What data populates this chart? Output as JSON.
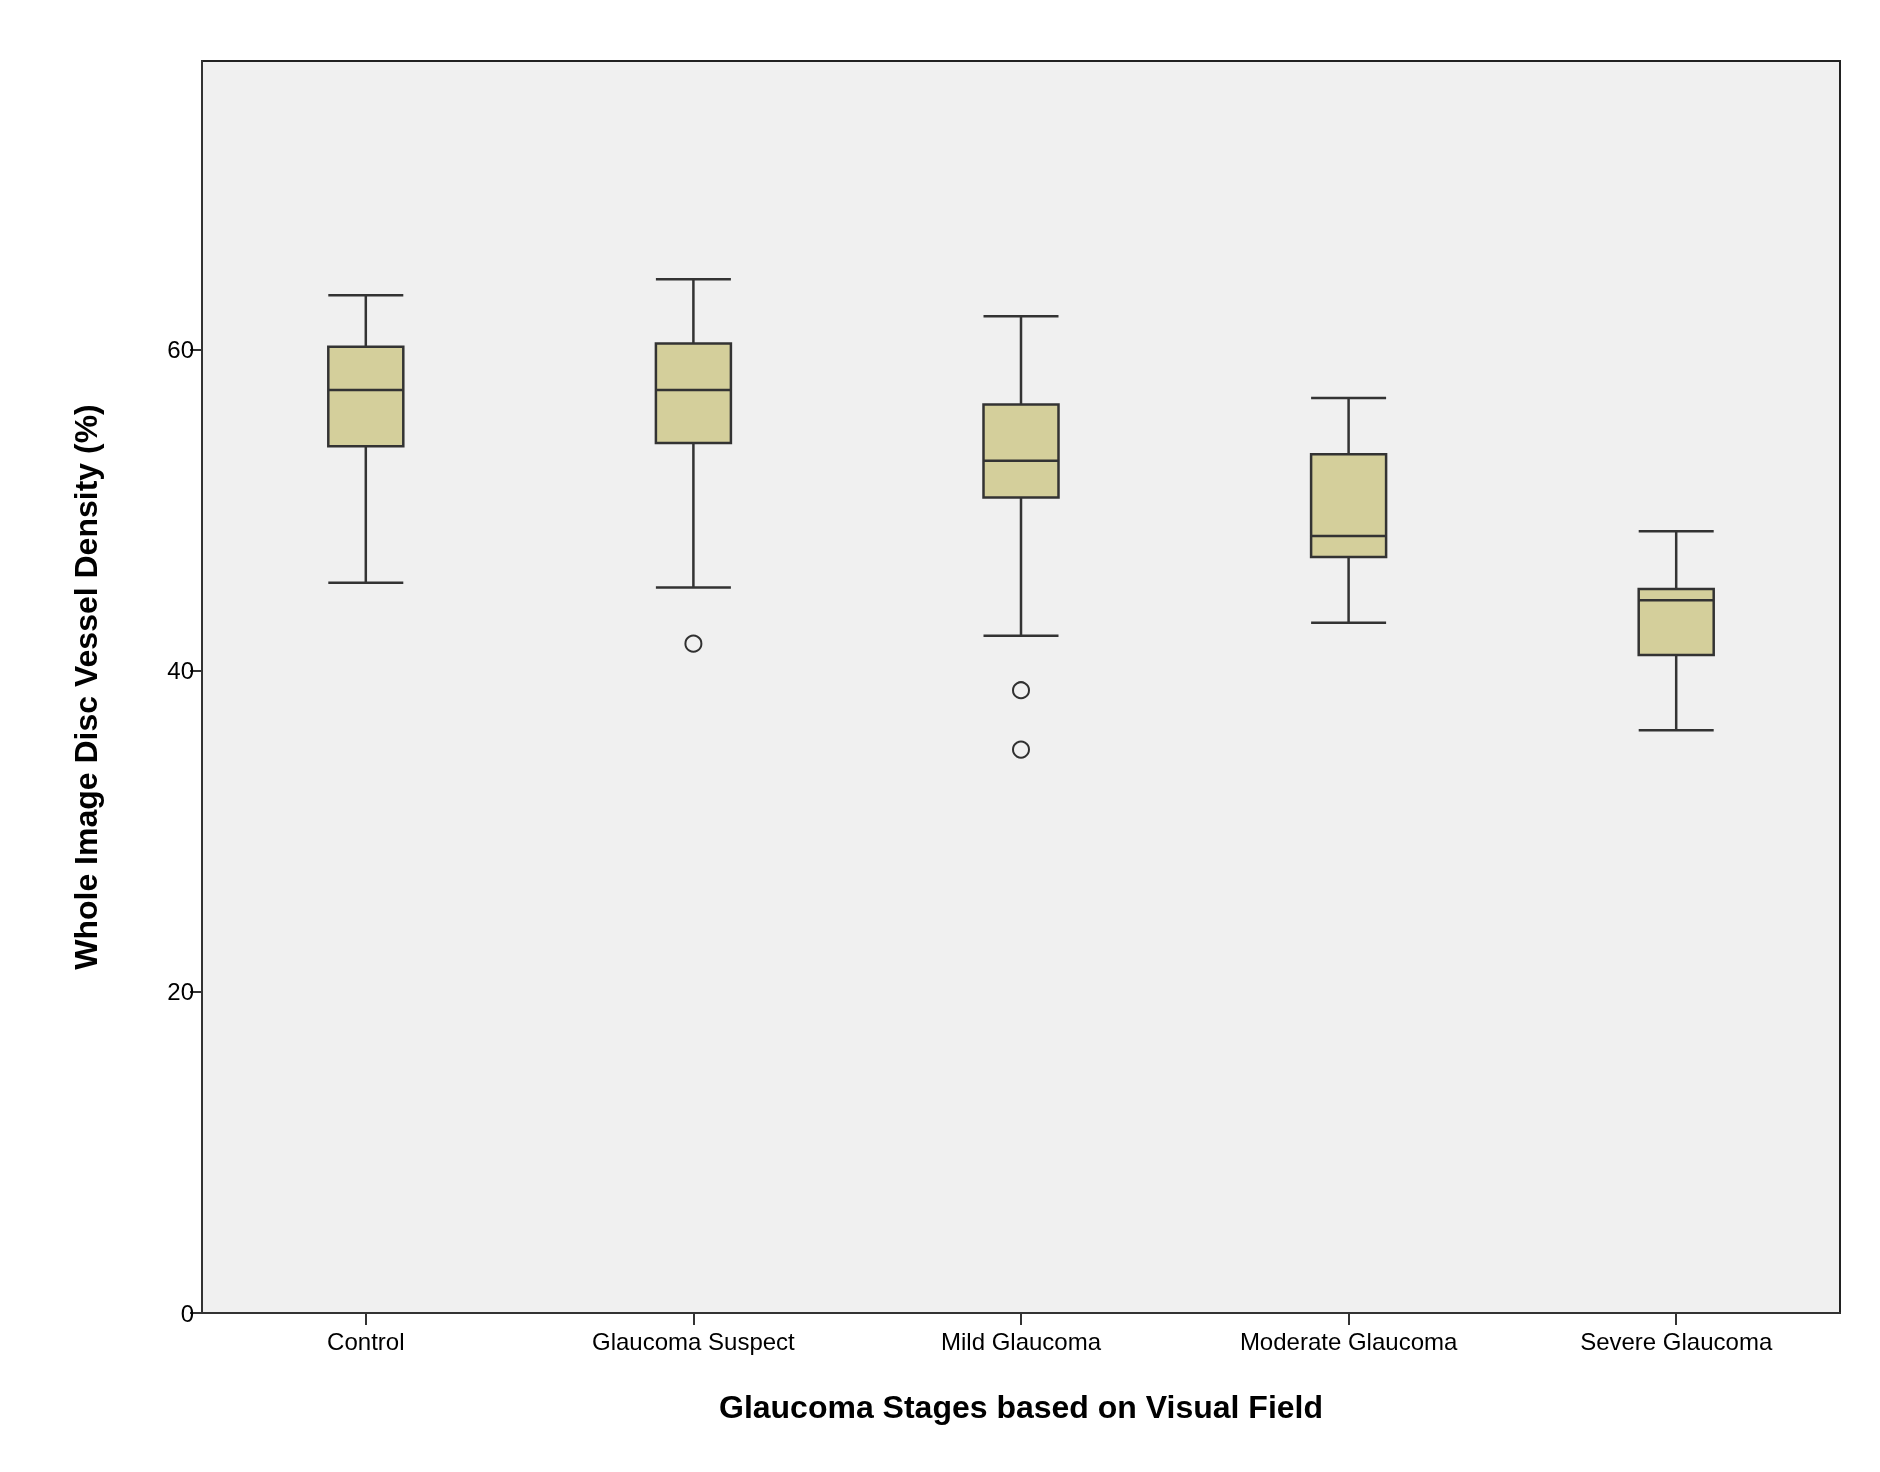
{
  "chart_data": {
    "type": "box",
    "xlabel": "Glaucoma Stages based on Visual Field",
    "ylabel": "Whole Image Disc Vessel Density (%)",
    "categories": [
      "Control",
      "Glaucoma Suspect",
      "Mild Glaucoma",
      "Moderate Glaucoma",
      "Severe Glaucoma"
    ],
    "color": "#d4cf9b",
    "boxes": [
      {
        "low": 45.5,
        "q1": 54.0,
        "median": 57.5,
        "q3": 60.2,
        "high": 63.4
      },
      {
        "low": 45.2,
        "q1": 54.2,
        "median": 57.5,
        "q3": 60.4,
        "high": 64.4,
        "outliers": [
          41.7
        ]
      },
      {
        "low": 42.2,
        "q1": 50.8,
        "median": 53.1,
        "q3": 56.6,
        "high": 62.1,
        "outliers": [
          38.8,
          35.1
        ]
      },
      {
        "low": 43.0,
        "q1": 47.1,
        "median": 48.4,
        "q3": 53.5,
        "high": 57.0
      },
      {
        "low": 36.3,
        "q1": 41.0,
        "median": 44.4,
        "q3": 45.1,
        "high": 48.7
      }
    ],
    "ylim": [
      0,
      78
    ],
    "yticks": [
      0,
      20,
      40,
      60
    ]
  }
}
